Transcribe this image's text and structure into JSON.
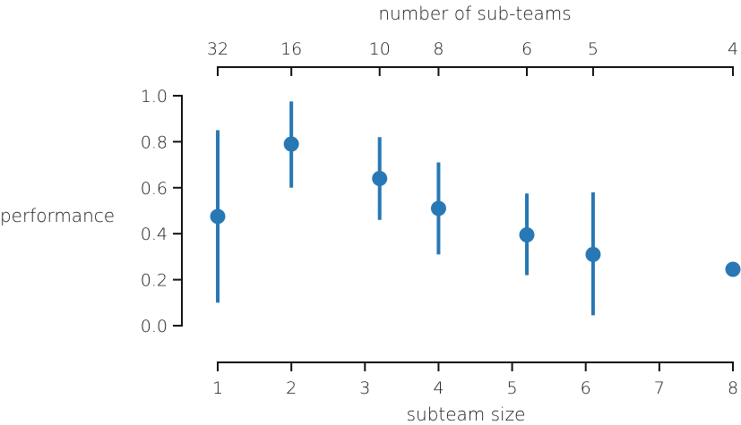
{
  "chart_data": {
    "type": "scatter",
    "title": "",
    "xlabel": "subteam size",
    "ylabel": "performance",
    "top_xlabel": "number of sub-teams",
    "xlim": [
      1,
      8
    ],
    "ylim": [
      0,
      1
    ],
    "x_ticks": [
      1,
      2,
      3,
      4,
      5,
      6,
      7,
      8
    ],
    "y_ticks": [
      "0.0",
      "0.2",
      "0.4",
      "0.6",
      "0.8",
      "1.0"
    ],
    "top_ticks": [
      {
        "x": 1,
        "label": "32"
      },
      {
        "x": 2,
        "label": "16"
      },
      {
        "x": 3.2,
        "label": "10"
      },
      {
        "x": 4,
        "label": "8"
      },
      {
        "x": 5.2,
        "label": "6"
      },
      {
        "x": 6.1,
        "label": "5"
      },
      {
        "x": 8,
        "label": "4"
      }
    ],
    "points": [
      {
        "x": 1.0,
        "y": 0.475,
        "lo": 0.1,
        "hi": 0.85
      },
      {
        "x": 2.0,
        "y": 0.79,
        "lo": 0.6,
        "hi": 0.975
      },
      {
        "x": 3.2,
        "y": 0.64,
        "lo": 0.46,
        "hi": 0.82
      },
      {
        "x": 4.0,
        "y": 0.51,
        "lo": 0.31,
        "hi": 0.71
      },
      {
        "x": 5.2,
        "y": 0.395,
        "lo": 0.22,
        "hi": 0.575
      },
      {
        "x": 6.1,
        "y": 0.31,
        "lo": 0.045,
        "hi": 0.58
      },
      {
        "x": 8.0,
        "y": 0.245,
        "lo": null,
        "hi": null
      }
    ],
    "color": "#2878b5",
    "grid": false,
    "legend": "none"
  }
}
